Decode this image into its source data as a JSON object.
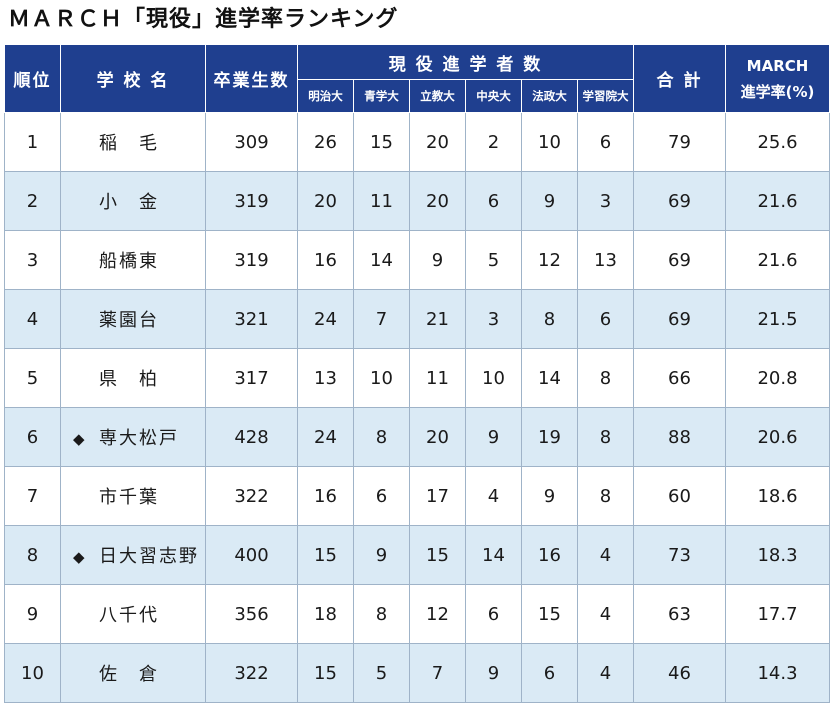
{
  "title": "ＭＡＲＣＨ「現役」進学率ランキング",
  "headers": {
    "rank": "順位",
    "school": "学 校 名",
    "graduates": "卒業生数",
    "group": "現 役 進 学 者 数",
    "universities": [
      "明治大",
      "青学大",
      "立教大",
      "中央大",
      "法政大",
      "学習院大"
    ],
    "total": "合 計",
    "rate_line1": "MARCH",
    "rate_line2": "進学率(%)"
  },
  "rows": [
    {
      "rank": "1",
      "mark": "",
      "school": "稲　毛",
      "graduates": "309",
      "counts": [
        "26",
        "15",
        "20",
        "2",
        "10",
        "6"
      ],
      "total": "79",
      "rate": "25.6"
    },
    {
      "rank": "2",
      "mark": "",
      "school": "小　金",
      "graduates": "319",
      "counts": [
        "20",
        "11",
        "20",
        "6",
        "9",
        "3"
      ],
      "total": "69",
      "rate": "21.6"
    },
    {
      "rank": "3",
      "mark": "",
      "school": "船橋東",
      "graduates": "319",
      "counts": [
        "16",
        "14",
        "9",
        "5",
        "12",
        "13"
      ],
      "total": "69",
      "rate": "21.6"
    },
    {
      "rank": "4",
      "mark": "",
      "school": "薬園台",
      "graduates": "321",
      "counts": [
        "24",
        "7",
        "21",
        "3",
        "8",
        "6"
      ],
      "total": "69",
      "rate": "21.5"
    },
    {
      "rank": "5",
      "mark": "",
      "school": "県　柏",
      "graduates": "317",
      "counts": [
        "13",
        "10",
        "11",
        "10",
        "14",
        "8"
      ],
      "total": "66",
      "rate": "20.8"
    },
    {
      "rank": "6",
      "mark": "◆",
      "school": "専大松戸",
      "graduates": "428",
      "counts": [
        "24",
        "8",
        "20",
        "9",
        "19",
        "8"
      ],
      "total": "88",
      "rate": "20.6"
    },
    {
      "rank": "7",
      "mark": "",
      "school": "市千葉",
      "graduates": "322",
      "counts": [
        "16",
        "6",
        "17",
        "4",
        "9",
        "8"
      ],
      "total": "60",
      "rate": "18.6"
    },
    {
      "rank": "8",
      "mark": "◆",
      "school": "日大習志野",
      "graduates": "400",
      "counts": [
        "15",
        "9",
        "15",
        "14",
        "16",
        "4"
      ],
      "total": "73",
      "rate": "18.3"
    },
    {
      "rank": "9",
      "mark": "",
      "school": "八千代",
      "graduates": "356",
      "counts": [
        "18",
        "8",
        "12",
        "6",
        "15",
        "4"
      ],
      "total": "63",
      "rate": "17.7"
    },
    {
      "rank": "10",
      "mark": "",
      "school": "佐　倉",
      "graduates": "322",
      "counts": [
        "15",
        "5",
        "7",
        "9",
        "6",
        "4"
      ],
      "total": "46",
      "rate": "14.3"
    }
  ]
}
